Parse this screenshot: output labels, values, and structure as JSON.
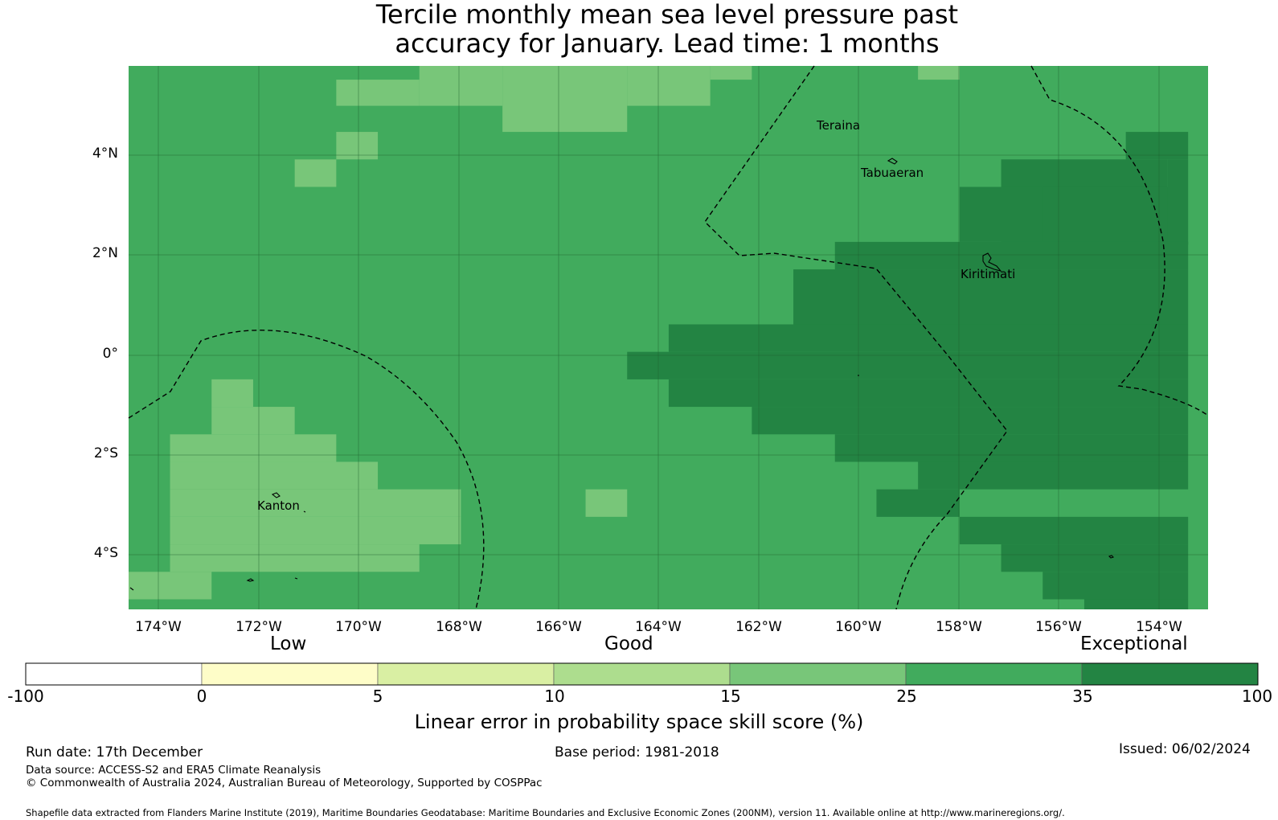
{
  "title_line1": "Tercile monthly mean sea level pressure past",
  "title_line2": "accuracy for January. Lead time: 1 months",
  "lat_labels": [
    "4°N",
    "2°N",
    "0°",
    "2°S",
    "4°S"
  ],
  "lon_labels": [
    "174°W",
    "172°W",
    "170°W",
    "168°W",
    "166°W",
    "164°W",
    "162°W",
    "160°W",
    "158°W",
    "156°W",
    "154°W"
  ],
  "places": [
    "Teraina",
    "Tabuaeran",
    "Kiritimati",
    "Kanton"
  ],
  "colorbar": {
    "words": [
      "Low",
      "Good",
      "Exceptional"
    ],
    "ticks": [
      "-100",
      "0",
      "5",
      "10",
      "15",
      "25",
      "35",
      "100"
    ],
    "colors": [
      "#ffffff",
      "#fefdc8",
      "#d9efa3",
      "#addd8e",
      "#78c679",
      "#41ab5d",
      "#238443"
    ],
    "title": "Linear error in probability space skill score (%)"
  },
  "footer": {
    "run_date": "Run date: 17th December",
    "base_period": "Base period: 1981-2018",
    "issued": "Issued: 06/02/2024",
    "data_source": "Data source: ACCESS-S2 and ERA5 Climate Reanalysis",
    "copyright": "© Commonwealth of Australia 2024, Australian Bureau of Meteorology, Supported by COSPPac",
    "shapefile": "Shapefile data extracted from Flanders Marine Institute (2019), Maritime Boundaries Geodatabase: Maritime Boundaries and Exclusive Economic Zones (200NM), version 11. Available online at http://www.marineregions.org/."
  }
}
